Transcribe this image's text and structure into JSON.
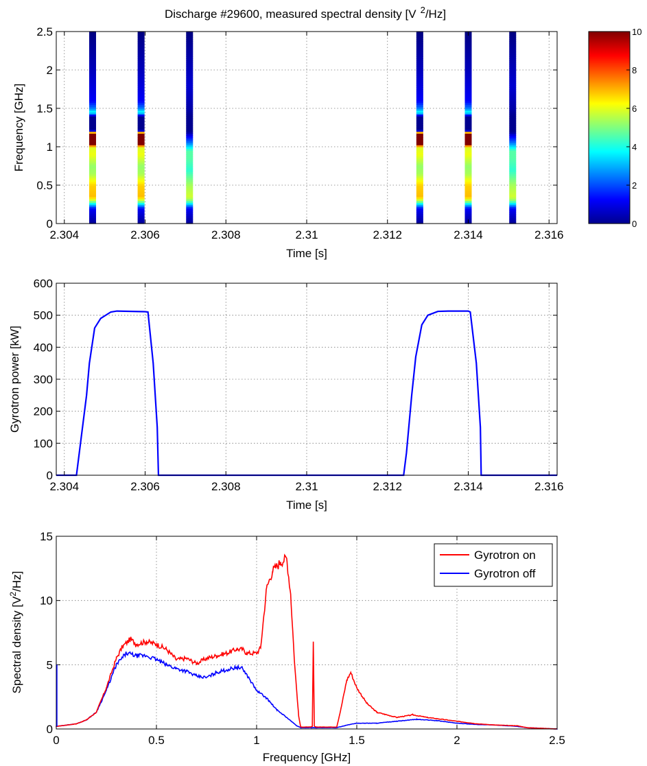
{
  "figure": {
    "title": "Discharge #29600, measured spectral density [V",
    "title_sup": "2",
    "title_end": "/Hz]"
  },
  "chart_data": [
    {
      "type": "heatmap",
      "title": "Discharge #29600, measured spectral density [V 2/Hz]",
      "xlabel": "Time [s]",
      "ylabel": "Frequency [GHz]",
      "xlim": [
        2.3038,
        2.3162
      ],
      "ylim": [
        0,
        2.5
      ],
      "xticks": [
        2.304,
        2.306,
        2.308,
        2.31,
        2.312,
        2.314,
        2.316
      ],
      "xtick_labels": [
        "2.304",
        "2.306",
        "2.308",
        "2.31",
        "2.312",
        "2.314",
        "2.316"
      ],
      "yticks": [
        0,
        0.5,
        1,
        1.5,
        2,
        2.5
      ],
      "ytick_labels": [
        "0",
        "0.5",
        "1",
        "1.5",
        "2",
        "2.5"
      ],
      "grid": true,
      "colorbar": {
        "min": 0,
        "max": 10,
        "ticks": [
          0,
          2,
          4,
          6,
          8,
          10
        ],
        "tick_labels": [
          "0",
          "2",
          "4",
          "6",
          "8",
          "10"
        ],
        "colormap": "jet"
      },
      "time_slices": [
        {
          "t": 2.3047,
          "gyrotron": "on"
        },
        {
          "t": 2.3059,
          "gyrotron": "on"
        },
        {
          "t": 2.3071,
          "gyrotron": "off"
        },
        {
          "t": 2.3128,
          "gyrotron": "on"
        },
        {
          "t": 2.314,
          "gyrotron": "on"
        },
        {
          "t": 2.3151,
          "gyrotron": "off"
        }
      ],
      "spectrum_profiles": {
        "on": [
          [
            0,
            0.2
          ],
          [
            0.2,
            1.2
          ],
          [
            0.25,
            3.3
          ],
          [
            0.3,
            5.5
          ],
          [
            0.35,
            6.9
          ],
          [
            0.5,
            6.7
          ],
          [
            0.65,
            5.4
          ],
          [
            0.75,
            5.2
          ],
          [
            0.9,
            6.1
          ],
          [
            1.0,
            5.9
          ],
          [
            1.05,
            11.5
          ],
          [
            1.1,
            12.8
          ],
          [
            1.15,
            13.2
          ],
          [
            1.18,
            10
          ],
          [
            1.2,
            2
          ],
          [
            1.22,
            0.15
          ],
          [
            1.4,
            0.15
          ],
          [
            1.45,
            4
          ],
          [
            1.5,
            2.5
          ],
          [
            1.6,
            1.2
          ],
          [
            2.0,
            0.6
          ],
          [
            2.35,
            0.2
          ],
          [
            2.5,
            0
          ]
        ],
        "off": [
          [
            0,
            0.2
          ],
          [
            0.2,
            1.2
          ],
          [
            0.3,
            5.0
          ],
          [
            0.35,
            5.8
          ],
          [
            0.5,
            5.4
          ],
          [
            0.6,
            4.8
          ],
          [
            0.7,
            4.2
          ],
          [
            0.85,
            4.6
          ],
          [
            0.95,
            4.6
          ],
          [
            1.05,
            2.5
          ],
          [
            1.15,
            1.0
          ],
          [
            1.2,
            0.15
          ],
          [
            1.4,
            0.15
          ],
          [
            1.5,
            0.4
          ],
          [
            1.8,
            0.8
          ],
          [
            2.35,
            0.2
          ],
          [
            2.5,
            0
          ]
        ]
      }
    },
    {
      "type": "line",
      "xlabel": "Time [s]",
      "ylabel": "Gyrotron power [kW]",
      "xlim": [
        2.3038,
        2.3162
      ],
      "ylim": [
        0,
        600
      ],
      "xticks": [
        2.304,
        2.306,
        2.308,
        2.31,
        2.312,
        2.314,
        2.316
      ],
      "xtick_labels": [
        "2.304",
        "2.306",
        "2.308",
        "2.31",
        "2.312",
        "2.314",
        "2.316"
      ],
      "yticks": [
        0,
        100,
        200,
        300,
        400,
        500,
        600
      ],
      "ytick_labels": [
        "0",
        "100",
        "200",
        "300",
        "400",
        "500",
        "600"
      ],
      "grid": true,
      "series": [
        {
          "color": "#0000ff",
          "points": [
            [
              2.3038,
              0
            ],
            [
              2.3043,
              0
            ],
            [
              2.30437,
              70
            ],
            [
              2.30455,
              250
            ],
            [
              2.30462,
              350
            ],
            [
              2.30475,
              460
            ],
            [
              2.3049,
              490
            ],
            [
              2.30515,
              510
            ],
            [
              2.3053,
              513
            ],
            [
              2.306,
              511
            ],
            [
              2.30607,
              510
            ],
            [
              2.3062,
              350
            ],
            [
              2.3063,
              150
            ],
            [
              2.30633,
              0
            ],
            [
              2.3124,
              0
            ],
            [
              2.31247,
              70
            ],
            [
              2.3126,
              250
            ],
            [
              2.3127,
              370
            ],
            [
              2.31285,
              470
            ],
            [
              2.313,
              500
            ],
            [
              2.31325,
              512
            ],
            [
              2.3135,
              513
            ],
            [
              2.314,
              513
            ],
            [
              2.31405,
              510
            ],
            [
              2.3142,
              350
            ],
            [
              2.3143,
              150
            ],
            [
              2.31432,
              0
            ],
            [
              2.3162,
              0
            ]
          ]
        }
      ]
    },
    {
      "type": "line",
      "xlabel": "Frequency [GHz]",
      "ylabel": "Spectral density [V",
      "ylabel_sup": "2",
      "ylabel_end": "/Hz]",
      "xlim": [
        0,
        2.5
      ],
      "ylim": [
        0,
        15
      ],
      "xticks": [
        0,
        0.5,
        1,
        1.5,
        2,
        2.5
      ],
      "xtick_labels": [
        "0",
        "0.5",
        "1",
        "1.5",
        "2",
        "2.5"
      ],
      "yticks": [
        0,
        5,
        10,
        15
      ],
      "ytick_labels": [
        "0",
        "5",
        "10",
        "15"
      ],
      "grid": true,
      "legend_position": "top-right",
      "series": [
        {
          "name": "Gyrotron on",
          "color": "#ff0000",
          "points": [
            [
              0,
              0.2
            ],
            [
              0.1,
              0.4
            ],
            [
              0.15,
              0.7
            ],
            [
              0.2,
              1.3
            ],
            [
              0.25,
              3.2
            ],
            [
              0.3,
              5.5
            ],
            [
              0.33,
              6.4
            ],
            [
              0.37,
              7.0
            ],
            [
              0.4,
              6.6
            ],
            [
              0.45,
              6.8
            ],
            [
              0.5,
              6.6
            ],
            [
              0.55,
              6.2
            ],
            [
              0.6,
              5.4
            ],
            [
              0.65,
              5.5
            ],
            [
              0.7,
              5.1
            ],
            [
              0.75,
              5.5
            ],
            [
              0.8,
              5.7
            ],
            [
              0.85,
              5.9
            ],
            [
              0.9,
              6.2
            ],
            [
              0.93,
              6.2
            ],
            [
              0.95,
              5.9
            ],
            [
              1.0,
              5.9
            ],
            [
              1.02,
              6.3
            ],
            [
              1.05,
              11.0
            ],
            [
              1.08,
              12.3
            ],
            [
              1.12,
              13.0
            ],
            [
              1.15,
              13.3
            ],
            [
              1.17,
              10.5
            ],
            [
              1.19,
              5.0
            ],
            [
              1.21,
              1.0
            ],
            [
              1.22,
              0.15
            ],
            [
              1.27,
              0.15
            ],
            [
              1.278,
              0.2
            ],
            [
              1.283,
              6.8
            ],
            [
              1.288,
              0.2
            ],
            [
              1.3,
              0.15
            ],
            [
              1.4,
              0.15
            ],
            [
              1.42,
              1.5
            ],
            [
              1.45,
              3.8
            ],
            [
              1.47,
              4.4
            ],
            [
              1.5,
              3.2
            ],
            [
              1.55,
              2.0
            ],
            [
              1.6,
              1.3
            ],
            [
              1.7,
              0.9
            ],
            [
              1.78,
              1.1
            ],
            [
              1.85,
              0.9
            ],
            [
              2.0,
              0.6
            ],
            [
              2.1,
              0.4
            ],
            [
              2.2,
              0.3
            ],
            [
              2.3,
              0.25
            ],
            [
              2.35,
              0.1
            ],
            [
              2.5,
              0.0
            ]
          ]
        },
        {
          "name": "Gyrotron off",
          "color": "#0000ff",
          "points": [
            [
              0,
              0.2
            ],
            [
              0.1,
              0.4
            ],
            [
              0.15,
              0.7
            ],
            [
              0.2,
              1.3
            ],
            [
              0.25,
              3.0
            ],
            [
              0.3,
              5.0
            ],
            [
              0.35,
              5.9
            ],
            [
              0.4,
              5.7
            ],
            [
              0.45,
              5.7
            ],
            [
              0.5,
              5.4
            ],
            [
              0.55,
              5.0
            ],
            [
              0.6,
              4.7
            ],
            [
              0.65,
              4.5
            ],
            [
              0.7,
              4.1
            ],
            [
              0.75,
              4.0
            ],
            [
              0.8,
              4.4
            ],
            [
              0.85,
              4.6
            ],
            [
              0.9,
              4.8
            ],
            [
              0.93,
              4.7
            ],
            [
              0.96,
              4.0
            ],
            [
              1.0,
              3.0
            ],
            [
              1.05,
              2.4
            ],
            [
              1.1,
              1.5
            ],
            [
              1.15,
              0.9
            ],
            [
              1.2,
              0.25
            ],
            [
              1.22,
              0.1
            ],
            [
              1.4,
              0.1
            ],
            [
              1.45,
              0.3
            ],
            [
              1.5,
              0.45
            ],
            [
              1.6,
              0.45
            ],
            [
              1.7,
              0.6
            ],
            [
              1.8,
              0.75
            ],
            [
              1.9,
              0.65
            ],
            [
              2.0,
              0.45
            ],
            [
              2.1,
              0.35
            ],
            [
              2.2,
              0.3
            ],
            [
              2.3,
              0.2
            ],
            [
              2.35,
              0.1
            ],
            [
              2.5,
              0.0
            ]
          ]
        }
      ]
    }
  ]
}
